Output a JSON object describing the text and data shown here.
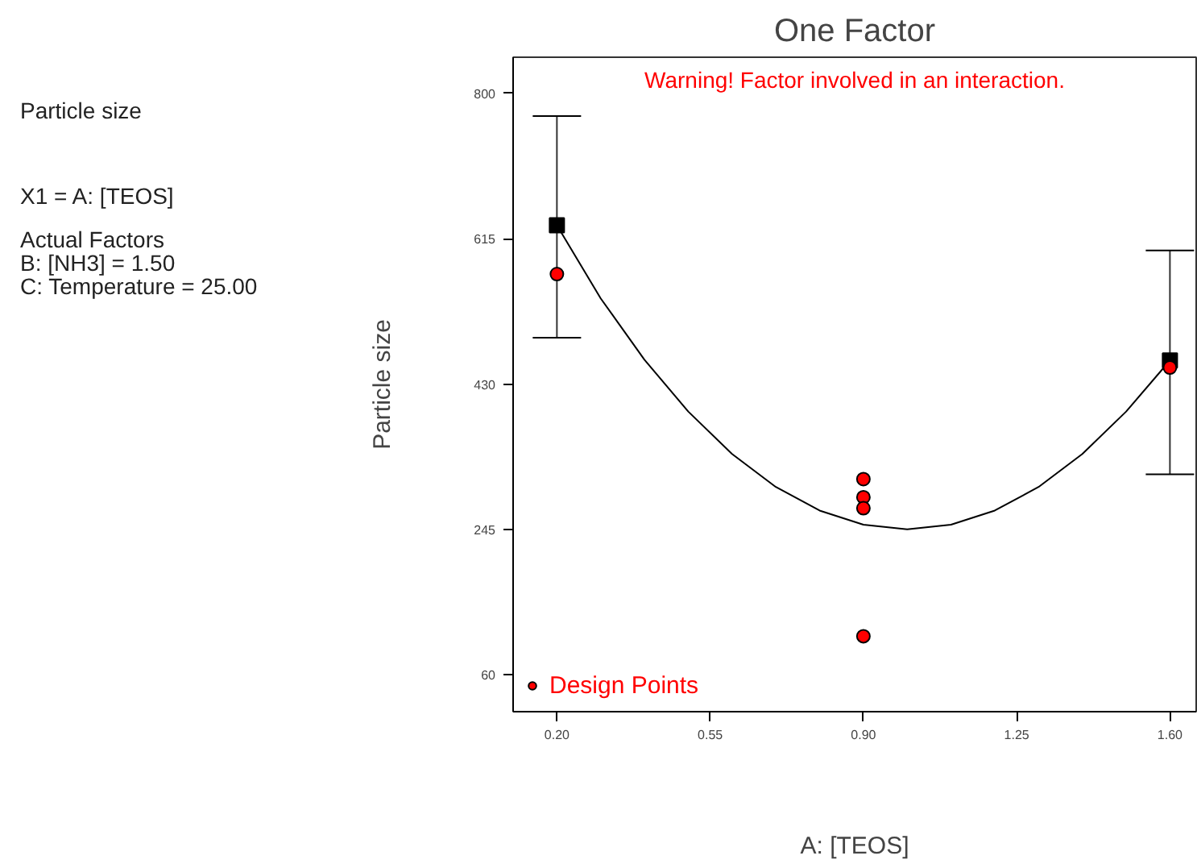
{
  "chart_data": {
    "type": "scatter",
    "title": "One Factor",
    "xlabel": "A: [TEOS]",
    "ylabel": "Particle size",
    "annotations": [
      "Warning! Factor involved in an interaction.",
      "Particle size",
      "X1 = A: [TEOS]",
      "Actual Factors",
      "B: [NH3] = 1.50",
      "C: Temperature = 25.00"
    ],
    "series": [
      {
        "type": "line",
        "color": "#000000",
        "marker": "none",
        "x": [
          0.2,
          0.3,
          0.4,
          0.5,
          0.6,
          0.7,
          0.8,
          0.9,
          1.0,
          1.1,
          1.2,
          1.3,
          1.4,
          1.5,
          1.6
        ],
        "values": [
          632,
          539,
          461,
          395,
          341,
          299,
          269,
          251,
          245,
          251,
          269,
          299,
          341,
          395,
          460
        ]
      },
      {
        "type": "scatter",
        "color": "#000000",
        "marker": "square",
        "x": [
          0.2,
          1.6
        ],
        "values": [
          632,
          460
        ],
        "errors": [
          [
            489,
            771
          ],
          [
            315,
            600
          ]
        ]
      },
      {
        "name": "Design Points",
        "color": "#ff0000",
        "marker": "circle",
        "x": [
          0.2,
          0.9,
          0.9,
          0.9,
          0.9,
          1.6
        ],
        "values": [
          570,
          309,
          286,
          272,
          109,
          451
        ]
      }
    ],
    "xlim": [
      0.1,
      1.66
    ],
    "ylim": [
      13,
      846
    ],
    "xticks": [
      {
        "value": 0.2,
        "label": "0.20"
      },
      {
        "value": 0.55,
        "label": "0.55"
      },
      {
        "value": 0.9,
        "label": "0.90"
      },
      {
        "value": 1.25,
        "label": "1.25"
      },
      {
        "value": 1.6,
        "label": "1.60"
      }
    ],
    "yticks": [
      60,
      245,
      430,
      615,
      800
    ],
    "grid": false,
    "legend": "bottom left"
  }
}
